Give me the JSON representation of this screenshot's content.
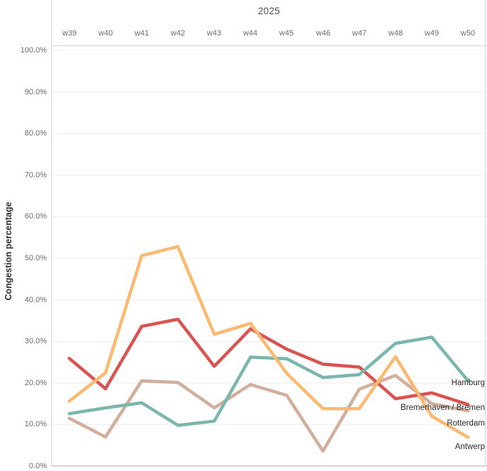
{
  "chart_data": {
    "type": "line",
    "title": "2025",
    "xlabel": "",
    "ylabel": "Congestion percentage",
    "x_labels": [
      "w39",
      "w40",
      "w41",
      "w42",
      "w43",
      "w44",
      "w45",
      "w46",
      "w47",
      "w48",
      "w49",
      "w50"
    ],
    "y_ticks": [
      "100.0%",
      "90.0%",
      "80.0%",
      "70.0%",
      "60.0%",
      "50.0%",
      "40.0%",
      "30.0%",
      "20.0%",
      "10.0%",
      "0.0%"
    ],
    "y_tick_values": [
      100,
      90,
      80,
      70,
      60,
      50,
      40,
      30,
      20,
      10,
      0
    ],
    "ylim": [
      0,
      100
    ],
    "grid": "horizontal-only",
    "legend_position": "line-end-labels-right",
    "unit": "percent",
    "series": [
      {
        "name": "Hamburg",
        "color": "#79b6ac",
        "values": [
          12.6,
          14.0,
          15.2,
          9.8,
          10.8,
          26.2,
          25.8,
          21.3,
          22.0,
          29.5,
          31.0,
          20.5
        ]
      },
      {
        "name": "Bremerhaven / Bremen",
        "color": "#d95351",
        "values": [
          25.9,
          18.6,
          33.6,
          35.3,
          24.0,
          33.0,
          28.1,
          24.5,
          23.8,
          16.2,
          17.6,
          14.8
        ]
      },
      {
        "name": "Rotterdam",
        "color": "#d2ae9c",
        "values": [
          11.5,
          7.0,
          20.5,
          20.1,
          14.0,
          19.6,
          17.0,
          3.6,
          18.5,
          21.8,
          15.0,
          13.3
        ]
      },
      {
        "name": "Antwerp",
        "color": "#fcb96f",
        "values": [
          15.6,
          22.4,
          50.6,
          52.8,
          31.7,
          34.3,
          22.3,
          13.8,
          13.8,
          26.3,
          12.0,
          6.9
        ]
      }
    ],
    "axis_colors": {
      "domain_line": "#d6d6d6",
      "gridline": "#ececec",
      "bottom_line": "#c9c9c9"
    }
  }
}
